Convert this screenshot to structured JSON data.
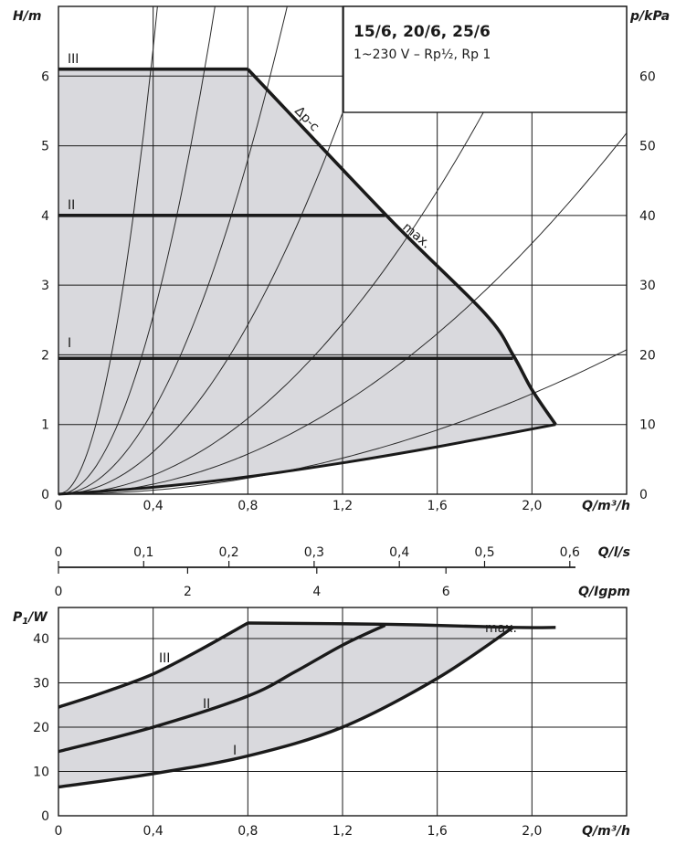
{
  "legend": {
    "title": "15/6, 20/6, 25/6",
    "subtitle": "1~230 V – Rp½, Rp 1"
  },
  "chart_data": [
    {
      "type": "line",
      "xlabel": "Q/m³/h",
      "ylabel": "H/m",
      "ylabel_right": "p/kPa",
      "xlim": [
        0,
        2.4
      ],
      "ylim": [
        0,
        7
      ],
      "ylim_right": [
        0,
        70
      ],
      "grid": true,
      "x_ticks": [
        "0",
        "0,4",
        "0,8",
        "1,2",
        "1,6",
        "2,0"
      ],
      "y_ticks": [
        "0",
        "1",
        "2",
        "3",
        "4",
        "5",
        "6"
      ],
      "y_right_ticks": [
        "0",
        "10",
        "20",
        "30",
        "40",
        "50",
        "60"
      ],
      "secondary_x_axes": [
        {
          "label": "Q/l/s",
          "ticks": [
            "0",
            "0,1",
            "0,2",
            "0,3",
            "0,4",
            "0,5",
            "0,6"
          ]
        },
        {
          "label": "Q/Igpm",
          "ticks": [
            "0",
            "2",
            "4",
            "6"
          ]
        }
      ],
      "annotations": [
        "Δp-c",
        "max."
      ],
      "series": [
        {
          "name": "III",
          "x": [
            0,
            0.8
          ],
          "y": [
            6.1,
            6.1
          ]
        },
        {
          "name": "II",
          "x": [
            0,
            1.38
          ],
          "y": [
            4.0,
            4.0
          ]
        },
        {
          "name": "I",
          "x": [
            0,
            1.92
          ],
          "y": [
            1.95,
            1.95
          ]
        },
        {
          "name": "max.",
          "x": [
            0.8,
            1.4,
            1.8,
            1.92,
            2.0,
            2.1
          ],
          "y": [
            6.1,
            3.95,
            2.6,
            2.0,
            1.5,
            1.0
          ]
        },
        {
          "name": "",
          "x": [
            0,
            0.4,
            0.8,
            1.2,
            1.6,
            2.1
          ],
          "y": [
            0,
            0.1,
            0.25,
            0.45,
            0.68,
            1.0
          ]
        }
      ],
      "system_curves": [
        {
          "k": 40
        },
        {
          "k": 16
        },
        {
          "k": 7.5
        },
        {
          "k": 3.8
        },
        {
          "k": 1.7
        },
        {
          "k": 0.9
        },
        {
          "k": 0.36
        }
      ]
    },
    {
      "type": "line",
      "xlabel": "Q/m³/h",
      "ylabel": "P1/W",
      "xlim": [
        0,
        2.4
      ],
      "ylim": [
        0,
        47
      ],
      "grid": true,
      "x_ticks": [
        "0",
        "0,4",
        "0,8",
        "1,2",
        "1,6",
        "2,0"
      ],
      "y_ticks": [
        "0",
        "10",
        "20",
        "30",
        "40"
      ],
      "annotations": [
        "max."
      ],
      "series": [
        {
          "name": "III",
          "x": [
            0,
            0.2,
            0.4,
            0.6,
            0.8
          ],
          "y": [
            24.5,
            28,
            32,
            37.5,
            43.5
          ]
        },
        {
          "name": "II",
          "x": [
            0,
            0.4,
            0.8,
            1.0,
            1.2,
            1.38
          ],
          "y": [
            14.5,
            20,
            27,
            32.5,
            38.5,
            43
          ]
        },
        {
          "name": "I",
          "x": [
            0,
            0.4,
            0.8,
            1.2,
            1.6,
            1.92
          ],
          "y": [
            6.5,
            9.5,
            13.5,
            20,
            31,
            42.5
          ]
        },
        {
          "name": "max.",
          "x": [
            0.8,
            1.4,
            1.92,
            2.1
          ],
          "y": [
            43.5,
            43.2,
            42.5,
            42.5
          ]
        }
      ]
    }
  ]
}
